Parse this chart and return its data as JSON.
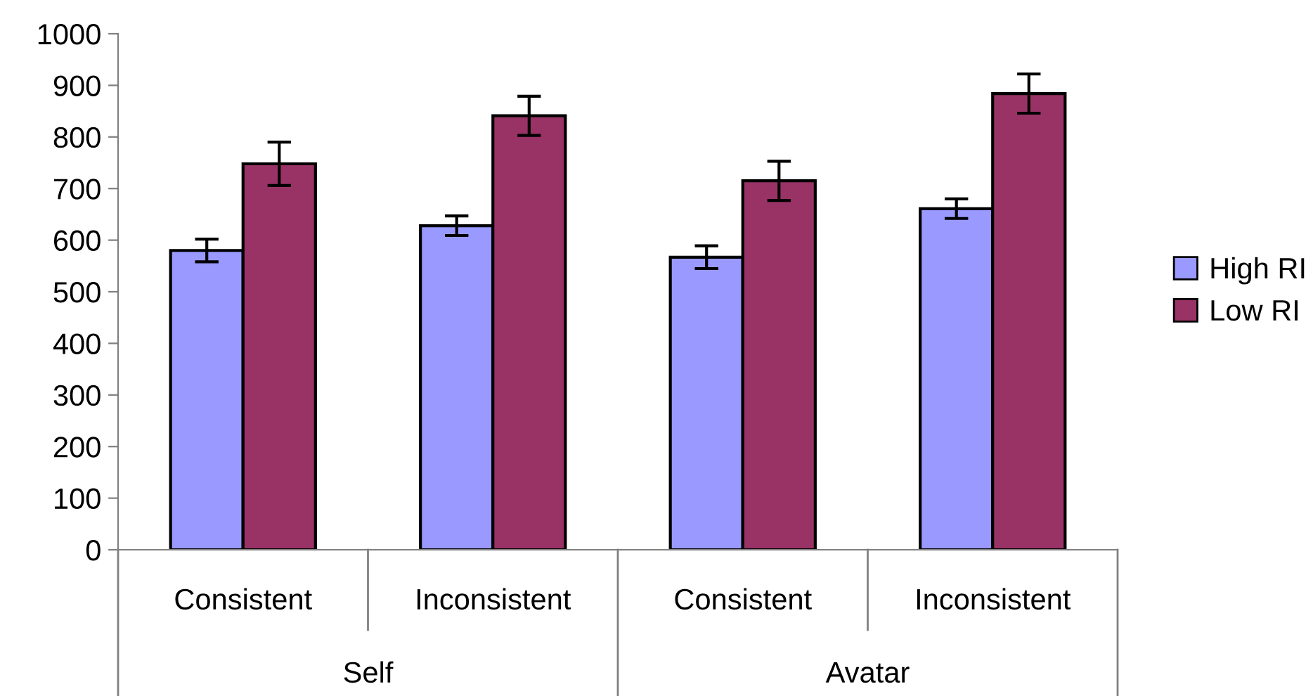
{
  "chart_data": {
    "type": "bar",
    "categories": [
      "Consistent",
      "Inconsistent",
      "Consistent",
      "Inconsistent"
    ],
    "series": [
      {
        "name": "High RI",
        "color": "#9999ff",
        "values": [
          580,
          628,
          567,
          661
        ],
        "errors": [
          22,
          19,
          22,
          19
        ]
      },
      {
        "name": "Low RI",
        "color": "#993366",
        "values": [
          748,
          841,
          715,
          884
        ],
        "errors": [
          42,
          38,
          38,
          38
        ]
      }
    ],
    "annotations": [
      "Self",
      "Avatar"
    ],
    "ylim": [
      0,
      1000
    ],
    "yticks": [
      0,
      100,
      200,
      300,
      400,
      500,
      600,
      700,
      800,
      900,
      1000
    ],
    "grid": false,
    "legend": "right"
  }
}
